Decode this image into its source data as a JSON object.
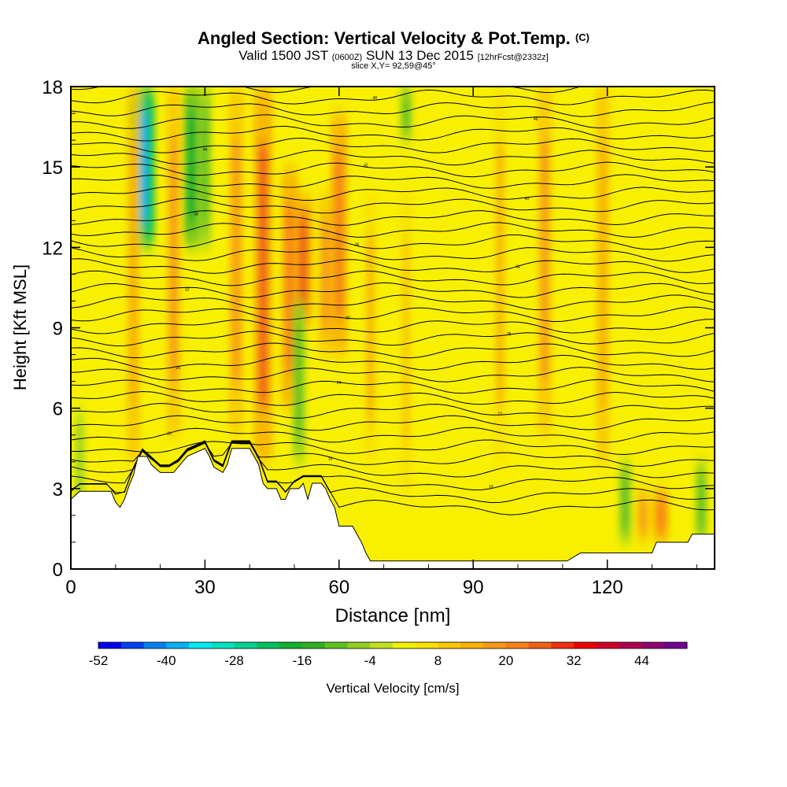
{
  "header": {
    "title": "Angled Section: Vertical Velocity & Pot.Temp.",
    "title_unit": "(C)",
    "valid_prefix": "Valid 1500 JST",
    "valid_utc": "(0600Z)",
    "valid_date": "SUN 13 Dec 2015",
    "forecast": "[12hrFcst@2332z]",
    "slice": "slice X,Y= 92,59@45°"
  },
  "chart_data": {
    "type": "heatmap",
    "xlabel": "Distance [nm]",
    "ylabel": "Height [Kft MSL]",
    "xlim": [
      0,
      144
    ],
    "ylim": [
      0,
      18
    ],
    "x_ticks": [
      0,
      30,
      60,
      90,
      120
    ],
    "y_ticks": [
      0,
      3,
      6,
      9,
      12,
      15,
      18
    ],
    "colorbar": {
      "label": "Vertical Velocity [cm/s]",
      "min": -52,
      "step": 4,
      "tick_labels": [
        -52,
        -40,
        -28,
        -16,
        -4,
        8,
        20,
        32,
        44
      ],
      "colors": [
        "#0000f0",
        "#0040f0",
        "#0080f0",
        "#00b0f0",
        "#00e8f0",
        "#00e0c0",
        "#00d090",
        "#00c060",
        "#10b030",
        "#30b020",
        "#60c020",
        "#90d020",
        "#c0e020",
        "#f0f000",
        "#f8e000",
        "#f8c800",
        "#f8b000",
        "#f89818",
        "#f88018",
        "#f06018",
        "#f03010",
        "#f00000",
        "#d00028",
        "#b00050",
        "#900070",
        "#700090"
      ]
    },
    "velocity_features": [
      {
        "x": 16,
        "y_range": [
          12,
          18
        ],
        "peak_cm_s": -40
      },
      {
        "x": 27,
        "y_range": [
          12,
          18
        ],
        "peak_cm_s": -20
      },
      {
        "x": 30,
        "y_range": [
          12,
          18
        ],
        "peak_cm_s": -12
      },
      {
        "x": 14,
        "y_range": [
          4,
          18
        ],
        "peak_cm_s": 14
      },
      {
        "x": 23,
        "y_range": [
          5,
          18
        ],
        "peak_cm_s": 16
      },
      {
        "x": 37,
        "y_range": [
          5,
          18
        ],
        "peak_cm_s": 18
      },
      {
        "x": 43,
        "y_range": [
          4,
          18
        ],
        "peak_cm_s": 26
      },
      {
        "x": 49,
        "y_range": [
          6,
          15
        ],
        "peak_cm_s": 22
      },
      {
        "x": 52,
        "y_range": [
          9,
          14
        ],
        "peak_cm_s": 26
      },
      {
        "x": 51,
        "y_range": [
          4,
          10
        ],
        "peak_cm_s": -12
      },
      {
        "x": 57,
        "y_range": [
          8,
          14
        ],
        "peak_cm_s": 18
      },
      {
        "x": 60,
        "y_range": [
          8,
          17
        ],
        "peak_cm_s": 22
      },
      {
        "x": 67,
        "y_range": [
          4,
          14
        ],
        "peak_cm_s": 12
      },
      {
        "x": 75,
        "y_range": [
          3,
          14
        ],
        "peak_cm_s": 10
      },
      {
        "x": 75,
        "y_range": [
          16,
          18
        ],
        "peak_cm_s": -10
      },
      {
        "x": 96,
        "y_range": [
          4,
          18
        ],
        "peak_cm_s": 12
      },
      {
        "x": 106,
        "y_range": [
          5,
          18
        ],
        "peak_cm_s": 16
      },
      {
        "x": 119,
        "y_range": [
          4,
          18
        ],
        "peak_cm_s": 14
      },
      {
        "x": 124,
        "y_range": [
          1,
          4
        ],
        "peak_cm_s": -12
      },
      {
        "x": 128,
        "y_range": [
          1,
          3
        ],
        "peak_cm_s": 16
      },
      {
        "x": 132,
        "y_range": [
          1,
          3
        ],
        "peak_cm_s": 22
      },
      {
        "x": 141,
        "y_range": [
          1,
          4
        ],
        "peak_cm_s": -10
      },
      {
        "x": 2,
        "y_range": [
          2,
          6
        ],
        "peak_cm_s": -6
      }
    ],
    "terrain_kft": [
      [
        0,
        2.6
      ],
      [
        2,
        2.9
      ],
      [
        9,
        2.9
      ],
      [
        10,
        2.5
      ],
      [
        11,
        2.3
      ],
      [
        12,
        2.6
      ],
      [
        13,
        3.1
      ],
      [
        14,
        3.5
      ],
      [
        15,
        4.2
      ],
      [
        17,
        4.2
      ],
      [
        18,
        3.9
      ],
      [
        20,
        3.6
      ],
      [
        23,
        3.6
      ],
      [
        24,
        3.8
      ],
      [
        26,
        4.2
      ],
      [
        30,
        4.5
      ],
      [
        31,
        4.2
      ],
      [
        32,
        3.8
      ],
      [
        34,
        3.6
      ],
      [
        35,
        3.9
      ],
      [
        36,
        4.5
      ],
      [
        40,
        4.5
      ],
      [
        41,
        4.2
      ],
      [
        42,
        3.9
      ],
      [
        43,
        3.2
      ],
      [
        44,
        3.0
      ],
      [
        46,
        3.0
      ],
      [
        47,
        2.6
      ],
      [
        48,
        2.6
      ],
      [
        49,
        3.0
      ],
      [
        51,
        3.0
      ],
      [
        52,
        3.2
      ],
      [
        53,
        2.6
      ],
      [
        54,
        3.2
      ],
      [
        56,
        3.2
      ],
      [
        57,
        3.0
      ],
      [
        58,
        2.6
      ],
      [
        59,
        2.3
      ],
      [
        60,
        1.6
      ],
      [
        63,
        1.6
      ],
      [
        64,
        1.3
      ],
      [
        65,
        1.0
      ],
      [
        66,
        0.6
      ],
      [
        67,
        0.3
      ],
      [
        110,
        0.3
      ],
      [
        111,
        0.3
      ],
      [
        114,
        0.6
      ],
      [
        130,
        0.6
      ],
      [
        131,
        1.0
      ],
      [
        138,
        1.0
      ],
      [
        139,
        1.3
      ],
      [
        144,
        1.3
      ]
    ],
    "theta_contour_intervals": 36,
    "theta_labels_visible": [
      "14",
      "16",
      "18",
      "20",
      "22",
      "24",
      "26",
      "28",
      "30",
      "32",
      "34",
      "36",
      "38",
      "40",
      "42",
      "44",
      "46",
      "48",
      "50",
      "52",
      "54",
      "56",
      "58",
      "60"
    ]
  }
}
